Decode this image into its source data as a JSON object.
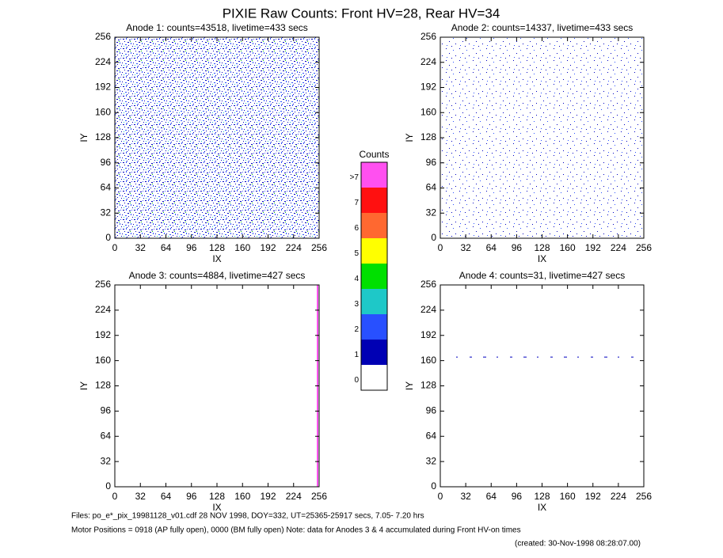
{
  "title": "PIXIE Raw Counts:  Front HV=28, Rear HV=34",
  "footer": [
    "Files: po_e*_pix_19981128_v01.cdf    28 NOV 1998, DOY=332, UT=25365-25917 secs,  7.05- 7.20 hrs",
    "Motor Positions = 0918 (AP fully open), 0000 (BM fully open)    Note: data for Anodes 3 & 4 accumulated during Front HV-on times",
    "(created: 30-Nov-1998 08:28:07.00)"
  ],
  "chart_data": [
    {
      "type": "heatmap",
      "title": "Anode 1: counts=43518, livetime=433 secs",
      "xlabel": "IX",
      "ylabel": "IY",
      "xlim": [
        0,
        256
      ],
      "ylim": [
        0,
        256
      ],
      "xticks": [
        0,
        32,
        64,
        96,
        128,
        160,
        192,
        224,
        256
      ],
      "yticks": [
        0,
        32,
        64,
        96,
        128,
        160,
        192,
        224,
        256
      ]
    },
    {
      "type": "heatmap",
      "title": "Anode 2: counts=14337, livetime=433 secs",
      "xlabel": "IX",
      "ylabel": "IY",
      "xlim": [
        0,
        256
      ],
      "ylim": [
        0,
        256
      ],
      "xticks": [
        0,
        32,
        64,
        96,
        128,
        160,
        192,
        224,
        256
      ],
      "yticks": [
        0,
        32,
        64,
        96,
        128,
        160,
        192,
        224,
        256
      ]
    },
    {
      "type": "heatmap",
      "title": "Anode 3: counts=4884, livetime=427 secs",
      "xlabel": "IX",
      "ylabel": "IY",
      "xlim": [
        0,
        256
      ],
      "ylim": [
        0,
        256
      ],
      "xticks": [
        0,
        32,
        64,
        96,
        128,
        160,
        192,
        224,
        256
      ],
      "yticks": [
        0,
        32,
        64,
        96,
        128,
        160,
        192,
        224,
        256
      ]
    },
    {
      "type": "heatmap",
      "title": "Anode 4: counts=31, livetime=427 secs",
      "xlabel": "IX",
      "ylabel": "IY",
      "xlim": [
        0,
        256
      ],
      "ylim": [
        0,
        256
      ],
      "xticks": [
        0,
        32,
        64,
        96,
        128,
        160,
        192,
        224,
        256
      ],
      "yticks": [
        0,
        32,
        64,
        96,
        128,
        160,
        192,
        224,
        256
      ]
    },
    {
      "type": "colorbar",
      "title": "Counts",
      "categories": [
        "0",
        "1",
        "2",
        "3",
        "4",
        "5",
        "6",
        "7",
        ">7"
      ],
      "colors": [
        "#ffffff",
        "#0000b4",
        "#2850ff",
        "#1ec8c8",
        "#00e000",
        "#ffff00",
        "#ff6830",
        "#ff1010",
        "#ff50f0"
      ]
    }
  ]
}
